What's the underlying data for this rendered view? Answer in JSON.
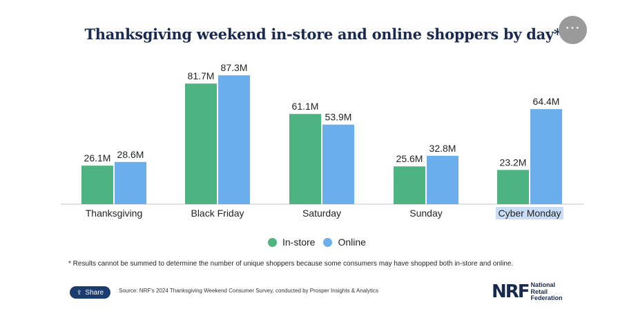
{
  "title": "Thanksgiving weekend in-store and online shoppers by day*",
  "menu_icon": "⋯",
  "chart_data": {
    "type": "bar",
    "categories": [
      "Thanksgiving",
      "Black Friday",
      "Saturday",
      "Sunday",
      "Cyber Monday"
    ],
    "series": [
      {
        "name": "In-store",
        "color": "#4db381",
        "values": [
          26.1,
          81.7,
          61.1,
          25.6,
          23.2
        ],
        "labels": [
          "26.1M",
          "81.7M",
          "61.1M",
          "25.6M",
          "23.2M"
        ]
      },
      {
        "name": "Online",
        "color": "#6aaeeb",
        "values": [
          28.6,
          87.3,
          53.9,
          32.8,
          64.4
        ],
        "labels": [
          "28.6M",
          "87.3M",
          "53.9M",
          "32.8M",
          "64.4M"
        ]
      }
    ],
    "ylim": [
      0,
      92
    ],
    "grid": false,
    "legend": "bottom-center",
    "highlighted_category": "Cyber Monday",
    "highlight_color": "#c9dcf5"
  },
  "legend_items": [
    {
      "label": "In-store",
      "color": "#4db381"
    },
    {
      "label": "Online",
      "color": "#6aaeeb"
    }
  ],
  "footnote": "* Results cannot be summed to determine the number of unique shoppers because some consumers may have shopped both in-store and online.",
  "share_label": "Share",
  "source": "Source: NRF's 2024 Thanksgiving Weekend Consumer Survey, conducted by Prosper Insights & Analytics",
  "logo": {
    "mark": "NRF",
    "lines": [
      "National",
      "Retail",
      "Federation"
    ]
  }
}
